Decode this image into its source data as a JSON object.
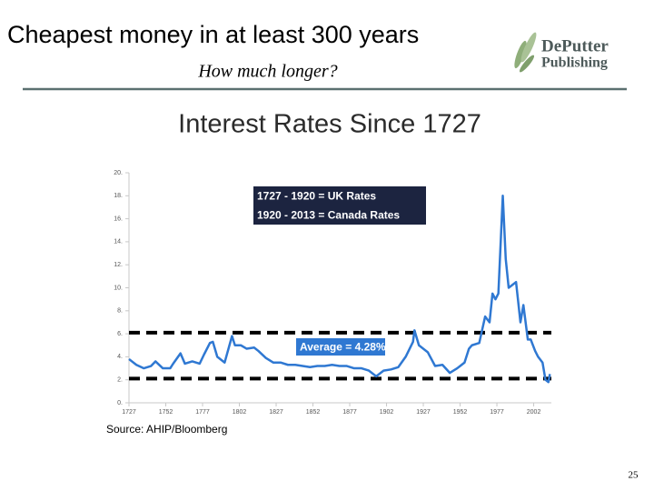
{
  "header": {
    "title": "Cheapest money in at least 300 years",
    "subtitle": "How much longer?",
    "logo": [
      "DePutter",
      "Publishing"
    ]
  },
  "chart_data": {
    "type": "line",
    "title": "Interest Rates Since 1727",
    "x": [
      1727,
      1732,
      1737,
      1742,
      1745,
      1750,
      1755,
      1757,
      1762,
      1765,
      1770,
      1775,
      1778,
      1782,
      1784,
      1787,
      1792,
      1797,
      1799,
      1803,
      1807,
      1812,
      1815,
      1820,
      1825,
      1830,
      1835,
      1840,
      1845,
      1850,
      1855,
      1860,
      1865,
      1870,
      1875,
      1880,
      1885,
      1890,
      1895,
      1900,
      1905,
      1910,
      1915,
      1920,
      1921,
      1924,
      1930,
      1935,
      1940,
      1945,
      1950,
      1955,
      1958,
      1960,
      1965,
      1969,
      1972,
      1974,
      1976,
      1978,
      1981,
      1983,
      1985,
      1987,
      1990,
      1993,
      1995,
      1998,
      2000,
      2003,
      2005,
      2008,
      2010,
      2012,
      2013
    ],
    "series": [
      {
        "color": "#2f78d2",
        "values": [
          3.8,
          3.3,
          3.0,
          3.2,
          3.6,
          3.0,
          3.0,
          3.4,
          4.3,
          3.4,
          3.6,
          3.4,
          4.2,
          5.2,
          5.3,
          4.0,
          3.5,
          5.8,
          5.0,
          5.0,
          4.7,
          4.8,
          4.5,
          3.9,
          3.5,
          3.5,
          3.3,
          3.3,
          3.2,
          3.1,
          3.2,
          3.2,
          3.3,
          3.2,
          3.2,
          3.0,
          3.0,
          2.8,
          2.3,
          2.8,
          2.9,
          3.1,
          4.0,
          5.3,
          6.3,
          5.0,
          4.4,
          3.2,
          3.3,
          2.6,
          3.0,
          3.5,
          4.7,
          5.0,
          5.2,
          7.5,
          7.0,
          9.5,
          9.0,
          9.5,
          18.0,
          12.5,
          10.0,
          10.2,
          10.5,
          7.0,
          8.5,
          5.5,
          5.5,
          4.5,
          4.0,
          3.5,
          2.0,
          1.8,
          2.5
        ]
      }
    ],
    "xlim": [
      1727,
      2014
    ],
    "xticks": [
      1727,
      1752,
      1777,
      1802,
      1827,
      1852,
      1877,
      1902,
      1927,
      1952,
      1977,
      2002
    ],
    "ylim": [
      0,
      20
    ],
    "yticks": [
      {
        "value": 0,
        "label": "0."
      },
      {
        "value": 2,
        "label": "2."
      },
      {
        "value": 4,
        "label": "4."
      },
      {
        "value": 6,
        "label": "6."
      },
      {
        "value": 8,
        "label": "8."
      },
      {
        "value": 10,
        "label": "10."
      },
      {
        "value": 12,
        "label": "12."
      },
      {
        "value": 14,
        "label": "14."
      },
      {
        "value": 16,
        "label": "16."
      },
      {
        "value": 18,
        "label": "18."
      },
      {
        "value": 20,
        "label": "20."
      }
    ],
    "reference_lines": [
      6.1,
      2.1
    ],
    "annotations": [
      "1727 - 1920 = UK Rates",
      "1920 - 2013 = Canada Rates",
      "Average = 4.28%"
    ]
  },
  "source": "Source: AHIP/Bloomberg",
  "page_number": "25"
}
